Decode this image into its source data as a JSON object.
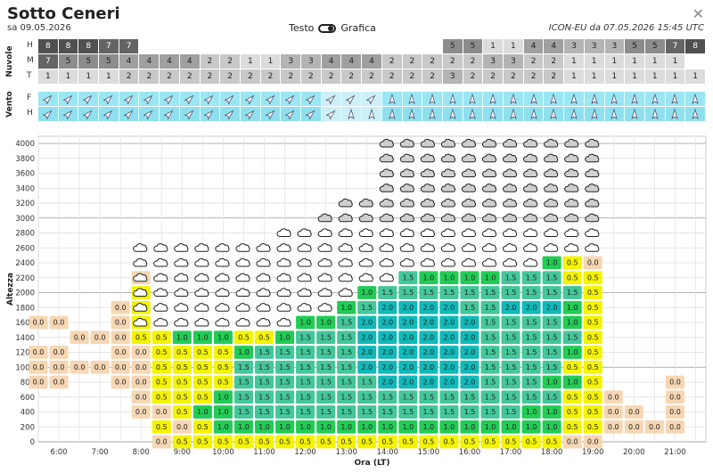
{
  "header": {
    "title": "Sotto Ceneri",
    "date": "sa 09.05.2026",
    "toggle_left": "Testo",
    "toggle_right": "Grafica",
    "model_info": "ICON-EU da 07.05.2026 15:45 UTC"
  },
  "clouds_section": {
    "label": "Nuvole",
    "rows": [
      {
        "label": "H",
        "values": [
          "8",
          "8",
          "8",
          "7",
          "7",
          "",
          "",
          "",
          "",
          "",
          "",
          "",
          "",
          "",
          "",
          "",
          "",
          "",
          "",
          "",
          "5",
          "5",
          "1",
          "1",
          "4",
          "4",
          "3",
          "3",
          "3",
          "5",
          "5",
          "7",
          "8"
        ]
      },
      {
        "label": "M",
        "values": [
          "7",
          "5",
          "5",
          "5",
          "4",
          "4",
          "4",
          "4",
          "2",
          "2",
          "1",
          "1",
          "3",
          "3",
          "4",
          "4",
          "4",
          "2",
          "2",
          "2",
          "2",
          "2",
          "3",
          "3",
          "2",
          "2",
          "1",
          "1",
          "1",
          "1",
          "1",
          "1",
          ""
        ]
      },
      {
        "label": "T",
        "values": [
          "1",
          "1",
          "1",
          "1",
          "2",
          "2",
          "2",
          "2",
          "2",
          "2",
          "2",
          "2",
          "2",
          "2",
          "2",
          "2",
          "2",
          "2",
          "2",
          "2",
          "3",
          "2",
          "2",
          "2",
          "2",
          "2",
          "1",
          "1",
          "1",
          "1",
          "1",
          "1",
          "1"
        ]
      }
    ]
  },
  "wind_section": {
    "label": "Vento",
    "rows": [
      {
        "label": "F",
        "direction": [
          "sw",
          "sw",
          "sw",
          "sw",
          "sw",
          "sw",
          "sw",
          "sw",
          "sw",
          "sw",
          "sw",
          "sw",
          "sw",
          "sw",
          "sw",
          "sw",
          "sw",
          "s",
          "s",
          "s",
          "s",
          "s",
          "s",
          "s",
          "s",
          "s",
          "s",
          "s",
          "s",
          "s",
          "s",
          "s",
          "s"
        ]
      },
      {
        "label": "H",
        "direction": [
          "sw",
          "sw",
          "sw",
          "sw",
          "sw",
          "sw",
          "sw",
          "sw",
          "sw",
          "sw",
          "sw",
          "sw",
          "sw",
          "sw",
          "sw",
          "s",
          "s",
          "s",
          "s",
          "s",
          "s",
          "s",
          "s",
          "s",
          "s",
          "s",
          "s",
          "s",
          "s",
          "s",
          "s",
          "s",
          "s"
        ]
      }
    ]
  },
  "colors": {
    "c00": "#f6d7b3",
    "c05": "#f4f400",
    "c10": "#22cc55",
    "c15": "#44c79a",
    "c20": "#12b9b9",
    "cloud_top_dark": "#6e6e6e"
  },
  "chart_data": {
    "type": "heatmap",
    "title": "",
    "xlabel": "Ora (LT)",
    "ylabel": "Altezza",
    "x_ticks": [
      "6:00",
      "7:00",
      "8:00",
      "9:00",
      "10:00",
      "11:00",
      "12:00",
      "13:00",
      "14:00",
      "15:00",
      "16:00",
      "17:00",
      "18:00",
      "19:00",
      "20:00",
      "21:00"
    ],
    "y_ticks": [
      0,
      200,
      400,
      600,
      800,
      1000,
      1200,
      1400,
      1600,
      1800,
      2000,
      2200,
      2400,
      2600,
      2800,
      3000,
      3200,
      3400,
      3600,
      3800,
      4000
    ],
    "x_range_hours": [
      5.5,
      21.75
    ],
    "y_range_m": [
      0,
      4000
    ],
    "time_step_hours": 0.5,
    "levels_m": [
      0,
      200,
      400,
      600,
      800,
      1000,
      1200,
      1400,
      1600,
      1800,
      2000,
      2200,
      2400,
      2600,
      2800,
      3000,
      3200,
      3400,
      3600,
      3800,
      4000
    ],
    "columns": [
      {
        "t": "5:30",
        "v": [
          "",
          "",
          "",
          "",
          "0.0",
          "0.0",
          "0.0",
          "",
          "0.0",
          "",
          "",
          "",
          "",
          "",
          "",
          "",
          "",
          "",
          "",
          "",
          ""
        ],
        "cloud_from": null
      },
      {
        "t": "6:00",
        "v": [
          "",
          "",
          "",
          "",
          "0.0",
          "0.0",
          "0.0",
          "",
          "0.0",
          "",
          "",
          "",
          "",
          "",
          "",
          "",
          "",
          "",
          "",
          "",
          ""
        ],
        "cloud_from": null
      },
      {
        "t": "6:30",
        "v": [
          "",
          "",
          "",
          "",
          "",
          "0.0",
          "",
          "0.0",
          "",
          "",
          "",
          "",
          "",
          "",
          "",
          "",
          "",
          "",
          "",
          "",
          ""
        ],
        "cloud_from": null
      },
      {
        "t": "7:00",
        "v": [
          "",
          "",
          "",
          "",
          "",
          "0.0",
          "",
          "0.0",
          "",
          "",
          "",
          "",
          "",
          "",
          "",
          "",
          "",
          "",
          "",
          "",
          ""
        ],
        "cloud_from": null
      },
      {
        "t": "7:30",
        "v": [
          "",
          "",
          "",
          "",
          "0.0",
          "0.0",
          "0.0",
          "0.0",
          "0.0",
          "0.0",
          "",
          "",
          "",
          "",
          "",
          "",
          "",
          "",
          "",
          "",
          ""
        ],
        "cloud_from": null
      },
      {
        "t": "8:00",
        "v": [
          "",
          "",
          "0.0",
          "0.0",
          "0.0",
          "0.0",
          "0.0",
          "0.5",
          "0.5",
          "0.5",
          "0.5",
          "0.0",
          "",
          "",
          "",
          "",
          "",
          "",
          "",
          "",
          ""
        ],
        "cloud_from": 8
      },
      {
        "t": "8:30",
        "v": [
          "0.0",
          "0.5",
          "0.0",
          "0.5",
          "0.5",
          "0.5",
          "0.5",
          "0.5",
          "",
          "",
          "",
          "",
          "",
          "",
          "",
          "",
          "",
          "",
          "",
          "",
          ""
        ],
        "cloud_from": 8
      },
      {
        "t": "9:00",
        "v": [
          "0.5",
          "0.0",
          "0.5",
          "0.5",
          "0.5",
          "0.5",
          "0.5",
          "1.0",
          "",
          "",
          "",
          "",
          "",
          "",
          "",
          "",
          "",
          "",
          "",
          "",
          ""
        ],
        "cloud_from": 8
      },
      {
        "t": "9:30",
        "v": [
          "0.5",
          "0.5",
          "1.0",
          "0.5",
          "0.5",
          "0.5",
          "0.5",
          "1.0",
          "",
          "",
          "",
          "",
          "",
          "",
          "",
          "",
          "",
          "",
          "",
          "",
          ""
        ],
        "cloud_from": 8
      },
      {
        "t": "10:00",
        "v": [
          "0.5",
          "1.0",
          "1.0",
          "1.0",
          "0.5",
          "0.5",
          "0.5",
          "1.0",
          "",
          "",
          "",
          "",
          "",
          "",
          "",
          "",
          "",
          "",
          "",
          "",
          ""
        ],
        "cloud_from": 8
      },
      {
        "t": "10:30",
        "v": [
          "0.5",
          "1.0",
          "1.5",
          "1.5",
          "1.5",
          "1.5",
          "1.0",
          "0.5",
          "",
          "",
          "",
          "",
          "",
          "",
          "",
          "",
          "",
          "",
          "",
          "",
          ""
        ],
        "cloud_from": 8
      },
      {
        "t": "11:00",
        "v": [
          "0.5",
          "1.0",
          "1.5",
          "1.5",
          "1.5",
          "1.5",
          "1.5",
          "0.5",
          "",
          "",
          "",
          "",
          "",
          "",
          "",
          "",
          "",
          "",
          "",
          "",
          ""
        ],
        "cloud_from": 8
      },
      {
        "t": "11:30",
        "v": [
          "0.5",
          "1.0",
          "1.5",
          "1.5",
          "1.5",
          "1.5",
          "1.5",
          "1.0",
          "",
          "",
          "",
          "",
          "",
          "",
          "",
          "",
          "",
          "",
          "",
          "",
          ""
        ],
        "cloud_from": 8
      },
      {
        "t": "12:00",
        "v": [
          "0.5",
          "1.0",
          "1.5",
          "1.5",
          "1.5",
          "1.5",
          "1.5",
          "1.5",
          "1.0",
          "",
          "",
          "",
          "",
          "",
          "",
          "",
          "",
          "",
          "",
          "",
          ""
        ],
        "cloud_from": 9
      },
      {
        "t": "12:30",
        "v": [
          "0.5",
          "1.0",
          "1.5",
          "1.5",
          "1.5",
          "1.5",
          "1.5",
          "1.5",
          "1.0",
          "",
          "",
          "",
          "",
          "",
          "",
          "",
          "",
          "",
          "",
          "",
          ""
        ],
        "cloud_from": 9
      },
      {
        "t": "13:00",
        "v": [
          "0.5",
          "1.0",
          "1.5",
          "1.5",
          "1.5",
          "1.5",
          "1.5",
          "1.5",
          "1.5",
          "1.0",
          "",
          "",
          "",
          "",
          "",
          "",
          "",
          "",
          "",
          "",
          ""
        ],
        "cloud_from": 10
      },
      {
        "t": "13:30",
        "v": [
          "0.5",
          "1.0",
          "1.5",
          "1.5",
          "1.5",
          "2.0",
          "2.0",
          "2.0",
          "2.0",
          "1.5",
          "1.0",
          "",
          "",
          "",
          "",
          "",
          "",
          "",
          "",
          "",
          ""
        ],
        "cloud_from": 11
      },
      {
        "t": "14:00",
        "v": [
          "0.5",
          "1.0",
          "1.5",
          "1.5",
          "2.0",
          "2.0",
          "2.0",
          "2.0",
          "2.0",
          "2.0",
          "1.5",
          "",
          "",
          "",
          "",
          "",
          "",
          "",
          "",
          "",
          ""
        ],
        "cloud_from": 11
      },
      {
        "t": "14:30",
        "v": [
          "0.5",
          "1.0",
          "1.5",
          "1.5",
          "2.0",
          "2.0",
          "2.0",
          "2.0",
          "2.0",
          "2.0",
          "1.5",
          "1.5",
          "",
          "",
          "",
          "",
          "",
          "",
          "",
          "",
          ""
        ],
        "cloud_from": 12
      },
      {
        "t": "15:00",
        "v": [
          "0.5",
          "1.0",
          "1.5",
          "1.5",
          "2.0",
          "2.0",
          "2.0",
          "2.0",
          "2.0",
          "2.0",
          "1.5",
          "1.0",
          "",
          "",
          "",
          "",
          "",
          "",
          "",
          "",
          ""
        ],
        "cloud_from": 12
      },
      {
        "t": "15:30",
        "v": [
          "0.5",
          "1.0",
          "1.5",
          "1.5",
          "2.0",
          "2.0",
          "2.0",
          "2.0",
          "2.0",
          "2.0",
          "1.5",
          "1.0",
          "",
          "",
          "",
          "",
          "",
          "",
          "",
          "",
          ""
        ],
        "cloud_from": 12
      },
      {
        "t": "16:00",
        "v": [
          "0.5",
          "1.0",
          "1.5",
          "1.5",
          "2.0",
          "2.0",
          "2.0",
          "2.0",
          "2.0",
          "1.5",
          "1.5",
          "1.0",
          "",
          "",
          "",
          "",
          "",
          "",
          "",
          "",
          ""
        ],
        "cloud_from": 12
      },
      {
        "t": "16:30",
        "v": [
          "0.5",
          "1.0",
          "1.5",
          "1.5",
          "1.5",
          "1.5",
          "1.5",
          "1.5",
          "1.5",
          "1.5",
          "1.5",
          "1.0",
          "",
          "",
          "",
          "",
          "",
          "",
          "",
          "",
          ""
        ],
        "cloud_from": 12
      },
      {
        "t": "17:00",
        "v": [
          "0.5",
          "1.0",
          "1.5",
          "1.5",
          "1.5",
          "1.5",
          "1.5",
          "1.5",
          "1.5",
          "2.0",
          "1.5",
          "1.5",
          "",
          "",
          "",
          "",
          "",
          "",
          "",
          "",
          ""
        ],
        "cloud_from": 12
      },
      {
        "t": "17:30",
        "v": [
          "0.5",
          "1.0",
          "1.0",
          "1.5",
          "1.5",
          "1.5",
          "1.5",
          "1.5",
          "1.5",
          "2.0",
          "1.5",
          "1.5",
          "",
          "",
          "",
          "",
          "",
          "",
          "",
          "",
          ""
        ],
        "cloud_from": 12
      },
      {
        "t": "18:00",
        "v": [
          "0.5",
          "1.0",
          "1.0",
          "1.5",
          "1.0",
          "1.5",
          "1.5",
          "1.5",
          "1.5",
          "2.0",
          "1.5",
          "1.5",
          "1.0",
          "",
          "",
          "",
          "",
          "",
          "",
          "",
          ""
        ],
        "cloud_from": 13
      },
      {
        "t": "18:30",
        "v": [
          "0.0",
          "0.5",
          "0.5",
          "0.5",
          "1.0",
          "0.5",
          "1.0",
          "1.5",
          "1.0",
          "1.0",
          "1.5",
          "0.5",
          "0.5",
          "",
          "",
          "",
          "",
          "",
          "",
          "",
          ""
        ],
        "cloud_from": 13
      },
      {
        "t": "19:00",
        "v": [
          "0.0",
          "0.5",
          "0.5",
          "0.5",
          "0.5",
          "0.5",
          "0.5",
          "0.5",
          "0.5",
          "0.5",
          "0.5",
          "0.5",
          "0.0",
          "",
          "",
          "",
          "",
          "",
          "",
          "",
          ""
        ],
        "cloud_from": 13
      },
      {
        "t": "19:30",
        "v": [
          "",
          "0.0",
          "0.0",
          "0.0",
          "",
          "",
          "",
          "",
          "",
          "",
          "",
          "",
          "",
          "",
          "",
          "",
          "",
          "",
          "",
          "",
          ""
        ],
        "cloud_from": null
      },
      {
        "t": "20:00",
        "v": [
          "",
          "0.0",
          "0.0",
          "",
          "",
          "",
          "",
          "",
          "",
          "",
          "",
          "",
          "",
          "",
          "",
          "",
          "",
          "",
          "",
          "",
          ""
        ],
        "cloud_from": null
      },
      {
        "t": "20:30",
        "v": [
          "",
          "0.0",
          "",
          "",
          "",
          "",
          "",
          "",
          "",
          "",
          "",
          "",
          "",
          "",
          "",
          "",
          "",
          "",
          "",
          "",
          ""
        ],
        "cloud_from": null
      },
      {
        "t": "21:00",
        "v": [
          "",
          "0.0",
          "0.0",
          "0.0",
          "0.0",
          "",
          "",
          "",
          "",
          "",
          "",
          "",
          "",
          "",
          "",
          "",
          "",
          "",
          "",
          "",
          ""
        ],
        "cloud_from": null
      }
    ],
    "cloud_tops_index": [
      null,
      null,
      null,
      null,
      null,
      13,
      13,
      13,
      13,
      13,
      13,
      13,
      14,
      14,
      15,
      16,
      16,
      20,
      20,
      20,
      20,
      20,
      20,
      20,
      20,
      20,
      20,
      20,
      20,
      null,
      null,
      null,
      null
    ]
  }
}
